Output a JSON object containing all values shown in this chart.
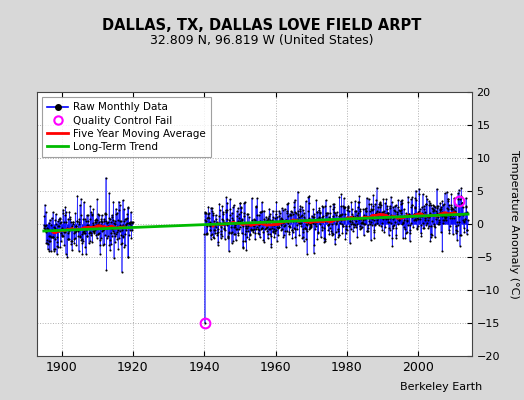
{
  "title": "DALLAS, TX, DALLAS LOVE FIELD ARPT",
  "subtitle": "32.809 N, 96.819 W (United States)",
  "ylabel": "Temperature Anomaly (°C)",
  "attribution": "Berkeley Earth",
  "xlim": [
    1893,
    2015
  ],
  "ylim": [
    -20,
    20
  ],
  "yticks": [
    -20,
    -15,
    -10,
    -5,
    0,
    5,
    10,
    15,
    20
  ],
  "xticks": [
    1900,
    1920,
    1940,
    1960,
    1980,
    2000
  ],
  "segment1_start_year": 1895,
  "segment1_end_year": 1920,
  "segment2_start_year": 1940,
  "segment2_end_year": 2014,
  "qc_fail_points": [
    [
      1940.08,
      -15.0
    ],
    [
      2011.5,
      3.5
    ]
  ],
  "raw_color": "#0000ff",
  "ma_color": "#ff0000",
  "trend_color": "#00bb00",
  "qc_color": "#ff00ff",
  "bg_color": "#d8d8d8",
  "plot_bg_color": "#ffffff",
  "grid_color": "#b0b0b0",
  "seed": 42
}
